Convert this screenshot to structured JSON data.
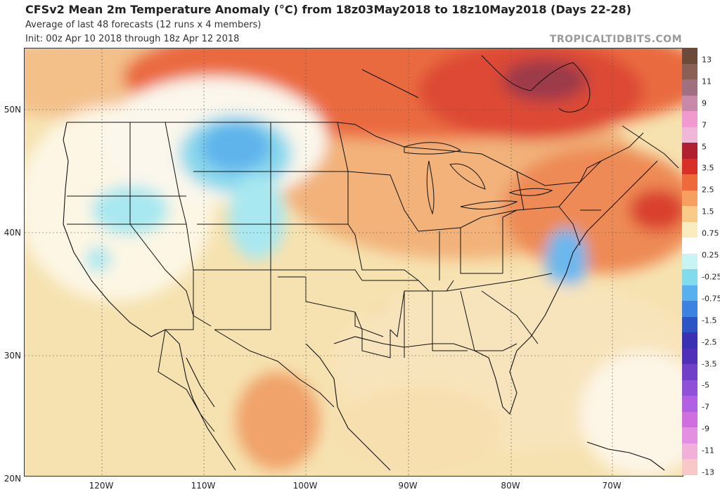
{
  "header": {
    "title": "CFSv2 Mean 2m Temperature Anomaly (°C) from 18z03May2018 to 18z10May2018 (Days 22-28)",
    "subtitle1": "Average of last 48 forecasts (12 runs x 4 members)",
    "subtitle2": "Init: 00z Apr 10 2018 through 18z Apr 12 2018",
    "brand": "TROPICALTIDBITS.COM"
  },
  "axes": {
    "lat_labels": [
      "50N",
      "40N",
      "30N",
      "20N"
    ],
    "lon_labels": [
      "120W",
      "110W",
      "100W",
      "90W",
      "80W",
      "70W"
    ]
  },
  "colorbar": {
    "labels": [
      "13",
      "11",
      "9",
      "7",
      "5",
      "3.5",
      "2.5",
      "1.5",
      "0.75",
      "0.25",
      "-0.25",
      "-0.75",
      "-1.5",
      "-2.5",
      "-3.5",
      "-5",
      "-7",
      "-9",
      "-11",
      "-13"
    ],
    "colors": [
      "#6b4a3a",
      "#8a5f55",
      "#a07080",
      "#c888a8",
      "#f09ad0",
      "#f0b8d8",
      "#b02030",
      "#d83028",
      "#ee6a3c",
      "#f5a060",
      "#f8cc88",
      "#fbecc0",
      "#ffffff",
      "#c8f4f4",
      "#80dcec",
      "#58b0ee",
      "#3c82e0",
      "#2c54c4",
      "#3a30b4",
      "#5030b8",
      "#7040c8",
      "#9050d8",
      "#b060e0",
      "#d070e0",
      "#e490e0",
      "#f0b0d8",
      "#f8c8c8"
    ],
    "accent_warm": "#c0262b",
    "accent_cool": "#58b8f0"
  }
}
